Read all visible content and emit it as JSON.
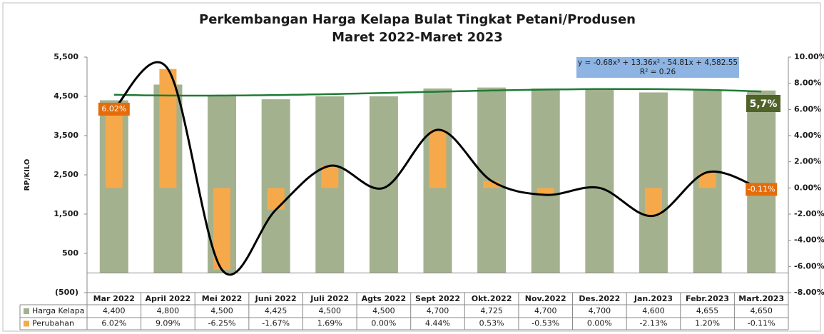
{
  "chart_data": {
    "type": "bar",
    "title": "Perkembangan Harga Kelapa Bulat Tingkat Petani/Produsen",
    "subtitle": "Maret  2022-Maret  2023",
    "y_label": "RP/KILO",
    "categories": [
      "Mar 2022",
      "April 2022",
      "Mei 2022",
      "Juni 2022",
      "Juli 2022",
      "Agts 2022",
      "Sept 2022",
      "Okt.2022",
      "Nov.2022",
      "Des.2022",
      "Jan.2023",
      "Febr.2023",
      "Mart.2023"
    ],
    "series": [
      {
        "name": "Harga Kelapa",
        "color": "#a3b18f",
        "values": [
          4400,
          4800,
          4500,
          4425,
          4500,
          4500,
          4700,
          4725,
          4700,
          4700,
          4600,
          4655,
          4650
        ],
        "value_labels": [
          "4,400",
          "4,800",
          "4,500",
          "4,425",
          "4,500",
          "4,500",
          "4,700",
          "4,725",
          "4,700",
          "4,700",
          "4,600",
          "4,655",
          "4,650"
        ]
      },
      {
        "name": "Perubahan",
        "color": "#f5a94a",
        "axis": "y2",
        "values": [
          6.02,
          9.09,
          -6.25,
          -1.67,
          1.69,
          0.0,
          4.44,
          0.53,
          -0.53,
          0.0,
          -2.13,
          1.2,
          -0.11
        ],
        "value_labels": [
          "6.02%",
          "9.09%",
          "-6.25%",
          "-1.67%",
          "1.69%",
          "0.00%",
          "4.44%",
          "0.53%",
          "-0.53%",
          "0.00%",
          "-2.13%",
          "1.20%",
          "-0.11%"
        ]
      }
    ],
    "point_labels": [
      0,
      12
    ],
    "ylim": [
      -500,
      5500
    ],
    "yticks": [
      {
        "value": -500,
        "label": "(500)"
      },
      500,
      {
        "value": 1500,
        "label": "1,500"
      },
      {
        "value": 2500,
        "label": "2,500"
      },
      {
        "value": 3500,
        "label": "3,500"
      },
      {
        "value": 4500,
        "label": "4,500"
      },
      {
        "value": 5500,
        "label": "5,500"
      }
    ],
    "y2lim": [
      -8,
      10
    ],
    "y2ticks": [
      {
        "value": -8,
        "label": "-8.00%"
      },
      {
        "value": -6,
        "label": "-6.00%"
      },
      {
        "value": -4,
        "label": "-4.00%"
      },
      {
        "value": -2,
        "label": "-2.00%"
      },
      {
        "value": 0,
        "label": "0.00%"
      },
      {
        "value": 2,
        "label": "2.00%"
      },
      {
        "value": 4,
        "label": "4.00%"
      },
      {
        "value": 6,
        "label": "6.00%"
      },
      {
        "value": 8,
        "label": "8.00%"
      },
      {
        "value": 10,
        "label": "10.00%"
      }
    ],
    "trendline_equation": "y = -0.68x³ + 13.36x² - 54.81x + 4,582.55",
    "trendline_r2": "R² = 0.26",
    "annotation": "5,7%",
    "grid": false
  }
}
